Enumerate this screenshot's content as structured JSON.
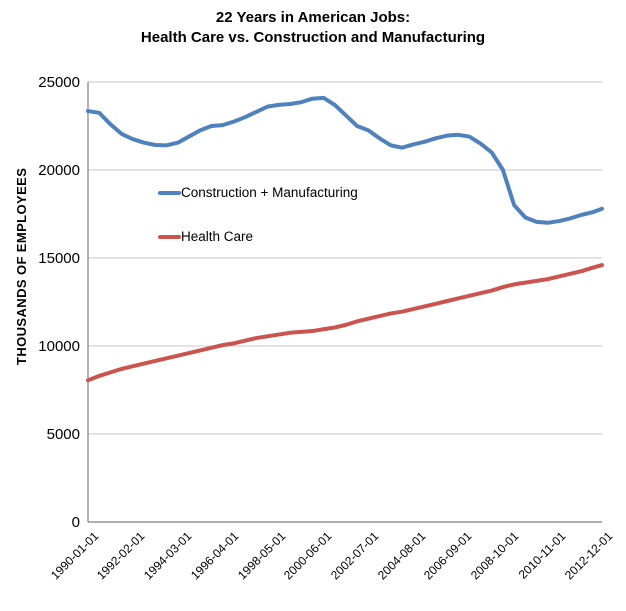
{
  "title": {
    "line1": "22 Years in American Jobs:",
    "line2": "Health Care vs. Construction and Manufacturing"
  },
  "chart_data": {
    "type": "line",
    "title": "22 Years in American Jobs: Health Care vs. Construction and Manufacturing",
    "xlabel": "",
    "ylabel": "THOUSANDS OF EMPLOYEES",
    "ylim": [
      0,
      25000
    ],
    "y_ticks": [
      0,
      5000,
      10000,
      15000,
      20000,
      25000
    ],
    "grid": "horizontal-only",
    "legend_position": "inside-upper-left",
    "x_unit": "months since 1990-01",
    "x_range_months": [
      0,
      275
    ],
    "x_tick_months": [
      0,
      25,
      50,
      75,
      100,
      125,
      150,
      175,
      200,
      225,
      250,
      275
    ],
    "x_tick_labels": [
      "1990-01-01",
      "1992-02-01",
      "1994-03-01",
      "1996-04-01",
      "1998-05-01",
      "2000-06-01",
      "2002-07-01",
      "2004-08-01",
      "2006-09-01",
      "2008-10-01",
      "2010-11-01",
      "2012-12-01"
    ],
    "x_months": [
      0,
      6,
      12,
      18,
      24,
      30,
      36,
      42,
      48,
      54,
      60,
      66,
      72,
      78,
      84,
      90,
      96,
      102,
      108,
      114,
      120,
      126,
      132,
      138,
      144,
      150,
      156,
      162,
      168,
      174,
      180,
      186,
      192,
      198,
      204,
      210,
      216,
      222,
      228,
      234,
      240,
      246,
      252,
      258,
      264,
      270,
      275
    ],
    "series": [
      {
        "name": "Construction + Manufacturing",
        "color": "#4F81BD",
        "values": [
          23350,
          23250,
          22600,
          22050,
          21750,
          21550,
          21420,
          21400,
          21550,
          21900,
          22250,
          22500,
          22550,
          22750,
          23000,
          23300,
          23600,
          23700,
          23750,
          23850,
          24050,
          24100,
          23700,
          23100,
          22500,
          22250,
          21800,
          21400,
          21270,
          21450,
          21600,
          21800,
          21950,
          22000,
          21900,
          21500,
          21000,
          20000,
          18000,
          17300,
          17050,
          17000,
          17100,
          17250,
          17450,
          17600,
          17800
        ]
      },
      {
        "name": "Health Care",
        "color": "#CB544F",
        "values": [
          8050,
          8300,
          8500,
          8700,
          8850,
          9000,
          9150,
          9300,
          9450,
          9600,
          9750,
          9900,
          10050,
          10150,
          10300,
          10450,
          10550,
          10650,
          10750,
          10800,
          10850,
          10950,
          11050,
          11200,
          11400,
          11550,
          11700,
          11850,
          11950,
          12100,
          12250,
          12400,
          12550,
          12700,
          12850,
          13000,
          13150,
          13350,
          13500,
          13600,
          13700,
          13800,
          13950,
          14100,
          14250,
          14450,
          14600
        ]
      }
    ],
    "colors": {
      "gridline": "#C9C9C9",
      "axis": "#7F7F7F",
      "background": "#FFFFFF",
      "text": "#000000"
    }
  }
}
